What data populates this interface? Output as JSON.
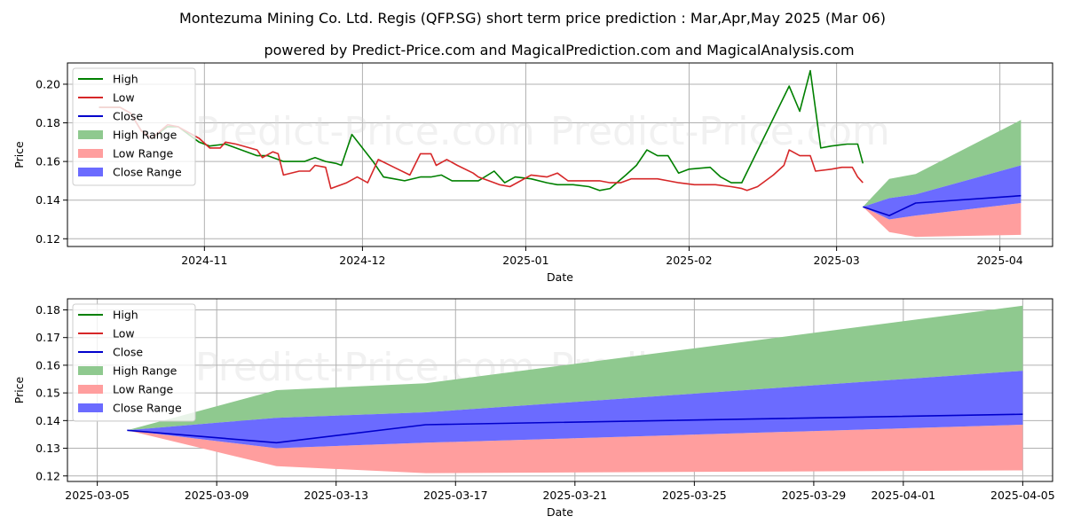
{
  "title": "Montezuma Mining Co. Ltd. Regis (QFP.SG) short term price prediction : Mar,Apr,May 2025 (Mar 06)",
  "subtitle": "powered by Predict-Price.com and MagicalPrediction.com and MagicalAnalysis.com",
  "watermark": "Predict-Price.com",
  "colors": {
    "high": "#008000",
    "low": "#d62728",
    "close": "#0000cc",
    "high_range": "#8fc98f",
    "low_range": "#ff9e9e",
    "close_range": "#6b6bff"
  },
  "legend": [
    "High",
    "Low",
    "Close",
    "High Range",
    "Low Range",
    "Close Range"
  ],
  "chart_data": [
    {
      "type": "line",
      "xlabel": "Date",
      "ylabel": "Price",
      "x_ticks": [
        "2024-11",
        "2024-12",
        "2025-01",
        "2025-02",
        "2025-03",
        "2025-04"
      ],
      "y_ticks": [
        "0.12",
        "0.14",
        "0.16",
        "0.18",
        "0.20"
      ],
      "xlim": [
        "2024-10-06",
        "2025-04-11"
      ],
      "ylim": [
        0.116,
        0.211
      ],
      "grid": true,
      "legend_position": "top-left",
      "series": [
        {
          "name": "High",
          "points": [
            [
              "2024-10-12",
              0.188
            ],
            [
              "2024-10-16",
              0.188
            ],
            [
              "2024-10-18",
              0.185
            ],
            [
              "2024-10-20",
              0.176
            ],
            [
              "2024-10-22",
              0.172
            ],
            [
              "2024-10-25",
              0.178
            ],
            [
              "2024-10-27",
              0.178
            ],
            [
              "2024-10-31",
              0.17
            ],
            [
              "2024-11-02",
              0.168
            ],
            [
              "2024-11-05",
              0.169
            ],
            [
              "2024-11-07",
              0.167
            ],
            [
              "2024-11-09",
              0.165
            ],
            [
              "2024-11-11",
              0.163
            ],
            [
              "2024-11-13",
              0.163
            ],
            [
              "2024-11-15",
              0.161
            ],
            [
              "2024-11-16",
              0.16
            ],
            [
              "2024-11-19",
              0.16
            ],
            [
              "2024-11-20",
              0.16
            ],
            [
              "2024-11-21",
              0.161
            ],
            [
              "2024-11-22",
              0.162
            ],
            [
              "2024-11-24",
              0.16
            ],
            [
              "2024-11-26",
              0.159
            ],
            [
              "2024-11-27",
              0.158
            ],
            [
              "2024-11-29",
              0.174
            ],
            [
              "2024-12-03",
              0.16
            ],
            [
              "2024-12-05",
              0.152
            ],
            [
              "2024-12-07",
              0.151
            ],
            [
              "2024-12-09",
              0.15
            ],
            [
              "2024-12-12",
              0.152
            ],
            [
              "2024-12-14",
              0.152
            ],
            [
              "2024-12-16",
              0.153
            ],
            [
              "2024-12-18",
              0.15
            ],
            [
              "2024-12-21",
              0.15
            ],
            [
              "2024-12-23",
              0.15
            ],
            [
              "2024-12-26",
              0.155
            ],
            [
              "2024-12-28",
              0.149
            ],
            [
              "2024-12-30",
              0.152
            ],
            [
              "2025-01-02",
              0.151
            ],
            [
              "2025-01-05",
              0.149
            ],
            [
              "2025-01-07",
              0.148
            ],
            [
              "2025-01-10",
              0.148
            ],
            [
              "2025-01-13",
              0.147
            ],
            [
              "2025-01-15",
              0.145
            ],
            [
              "2025-01-17",
              0.146
            ],
            [
              "2025-01-20",
              0.153
            ],
            [
              "2025-01-22",
              0.158
            ],
            [
              "2025-01-24",
              0.166
            ],
            [
              "2025-01-26",
              0.163
            ],
            [
              "2025-01-28",
              0.163
            ],
            [
              "2025-01-30",
              0.154
            ],
            [
              "2025-02-01",
              0.156
            ],
            [
              "2025-02-05",
              0.157
            ],
            [
              "2025-02-07",
              0.152
            ],
            [
              "2025-02-09",
              0.149
            ],
            [
              "2025-02-11",
              0.149
            ],
            [
              "2025-02-20",
              0.199
            ],
            [
              "2025-02-22",
              0.186
            ],
            [
              "2025-02-24",
              0.207
            ],
            [
              "2025-02-26",
              0.167
            ],
            [
              "2025-02-28",
              0.168
            ],
            [
              "2025-03-03",
              0.169
            ],
            [
              "2025-03-05",
              0.169
            ],
            [
              "2025-03-06",
              0.159
            ]
          ]
        },
        {
          "name": "Low",
          "points": [
            [
              "2024-10-12",
              0.188
            ],
            [
              "2024-10-16",
              0.188
            ],
            [
              "2024-10-18",
              0.185
            ],
            [
              "2024-10-20",
              0.176
            ],
            [
              "2024-10-22",
              0.172
            ],
            [
              "2024-10-25",
              0.179
            ],
            [
              "2024-10-27",
              0.178
            ],
            [
              "2024-10-31",
              0.172
            ],
            [
              "2024-11-02",
              0.167
            ],
            [
              "2024-11-04",
              0.167
            ],
            [
              "2024-11-05",
              0.17
            ],
            [
              "2024-11-07",
              0.169
            ],
            [
              "2024-11-11",
              0.166
            ],
            [
              "2024-11-12",
              0.162
            ],
            [
              "2024-11-14",
              0.165
            ],
            [
              "2024-11-15",
              0.164
            ],
            [
              "2024-11-16",
              0.153
            ],
            [
              "2024-11-19",
              0.155
            ],
            [
              "2024-11-21",
              0.155
            ],
            [
              "2024-11-22",
              0.158
            ],
            [
              "2024-11-24",
              0.157
            ],
            [
              "2024-11-25",
              0.146
            ],
            [
              "2024-11-28",
              0.149
            ],
            [
              "2024-11-30",
              0.152
            ],
            [
              "2024-12-02",
              0.149
            ],
            [
              "2024-12-04",
              0.161
            ],
            [
              "2024-12-07",
              0.157
            ],
            [
              "2024-12-10",
              0.153
            ],
            [
              "2024-12-12",
              0.164
            ],
            [
              "2024-12-14",
              0.164
            ],
            [
              "2024-12-15",
              0.158
            ],
            [
              "2024-12-17",
              0.161
            ],
            [
              "2024-12-19",
              0.158
            ],
            [
              "2024-12-22",
              0.154
            ],
            [
              "2024-12-23",
              0.152
            ],
            [
              "2024-12-25",
              0.15
            ],
            [
              "2024-12-27",
              0.148
            ],
            [
              "2024-12-29",
              0.147
            ],
            [
              "2025-01-02",
              0.153
            ],
            [
              "2025-01-05",
              0.152
            ],
            [
              "2025-01-07",
              0.154
            ],
            [
              "2025-01-09",
              0.15
            ],
            [
              "2025-01-12",
              0.15
            ],
            [
              "2025-01-15",
              0.15
            ],
            [
              "2025-01-17",
              0.149
            ],
            [
              "2025-01-19",
              0.149
            ],
            [
              "2025-01-21",
              0.151
            ],
            [
              "2025-01-23",
              0.151
            ],
            [
              "2025-01-26",
              0.151
            ],
            [
              "2025-01-28",
              0.15
            ],
            [
              "2025-01-30",
              0.149
            ],
            [
              "2025-02-02",
              0.148
            ],
            [
              "2025-02-06",
              0.148
            ],
            [
              "2025-02-09",
              0.147
            ],
            [
              "2025-02-11",
              0.146
            ],
            [
              "2025-02-12",
              0.145
            ],
            [
              "2025-02-14",
              0.147
            ],
            [
              "2025-02-17",
              0.153
            ],
            [
              "2025-02-19",
              0.158
            ],
            [
              "2025-02-20",
              0.166
            ],
            [
              "2025-02-22",
              0.163
            ],
            [
              "2025-02-24",
              0.163
            ],
            [
              "2025-02-25",
              0.155
            ],
            [
              "2025-02-28",
              0.156
            ],
            [
              "2025-03-02",
              0.157
            ],
            [
              "2025-03-04",
              0.157
            ],
            [
              "2025-03-05",
              0.152
            ],
            [
              "2025-03-06",
              0.149
            ]
          ]
        },
        {
          "name": "Close",
          "points": [
            [
              "2025-03-06",
              0.1365
            ],
            [
              "2025-03-11",
              0.132
            ],
            [
              "2025-03-16",
              0.1385
            ],
            [
              "2025-04-05",
              0.1423
            ]
          ]
        }
      ],
      "ranges": [
        {
          "name": "High Range",
          "x": [
            "2025-03-06",
            "2025-03-11",
            "2025-03-16",
            "2025-04-05"
          ],
          "upper": [
            0.1365,
            0.151,
            0.1535,
            0.1815
          ],
          "lower": [
            0.1365,
            0.141,
            0.143,
            0.158
          ]
        },
        {
          "name": "Low Range",
          "x": [
            "2025-03-06",
            "2025-03-11",
            "2025-03-16",
            "2025-04-05"
          ],
          "upper": [
            0.1365,
            0.13,
            0.132,
            0.1385
          ],
          "lower": [
            0.1365,
            0.1235,
            0.121,
            0.122
          ]
        },
        {
          "name": "Close Range",
          "x": [
            "2025-03-06",
            "2025-03-11",
            "2025-03-16",
            "2025-04-05"
          ],
          "upper": [
            0.1365,
            0.141,
            0.143,
            0.158
          ],
          "lower": [
            0.1365,
            0.13,
            0.132,
            0.1385
          ]
        }
      ]
    },
    {
      "type": "line",
      "xlabel": "Date",
      "ylabel": "Price",
      "x_ticks": [
        "2025-03-05",
        "2025-03-09",
        "2025-03-13",
        "2025-03-17",
        "2025-03-21",
        "2025-03-25",
        "2025-03-29",
        "2025-04-01",
        "2025-04-05"
      ],
      "y_ticks": [
        "0.12",
        "0.13",
        "0.14",
        "0.15",
        "0.16",
        "0.17",
        "0.18"
      ],
      "xlim": [
        "2025-03-04",
        "2025-04-06"
      ],
      "ylim": [
        0.118,
        0.184
      ],
      "grid": true,
      "legend_position": "top-left",
      "series": [
        {
          "name": "Close",
          "points": [
            [
              "2025-03-06",
              0.1365
            ],
            [
              "2025-03-11",
              0.132
            ],
            [
              "2025-03-16",
              0.1385
            ],
            [
              "2025-04-05",
              0.1423
            ]
          ]
        }
      ],
      "ranges": [
        {
          "name": "High Range",
          "x": [
            "2025-03-06",
            "2025-03-11",
            "2025-03-16",
            "2025-04-05"
          ],
          "upper": [
            0.1365,
            0.151,
            0.1535,
            0.1815
          ],
          "lower": [
            0.1365,
            0.141,
            0.143,
            0.158
          ]
        },
        {
          "name": "Low Range",
          "x": [
            "2025-03-06",
            "2025-03-11",
            "2025-03-16",
            "2025-04-05"
          ],
          "upper": [
            0.1365,
            0.13,
            0.132,
            0.1385
          ],
          "lower": [
            0.1365,
            0.1235,
            0.121,
            0.122
          ]
        },
        {
          "name": "Close Range",
          "x": [
            "2025-03-06",
            "2025-03-11",
            "2025-03-16",
            "2025-04-05"
          ],
          "upper": [
            0.1365,
            0.141,
            0.143,
            0.158
          ],
          "lower": [
            0.1365,
            0.13,
            0.132,
            0.1385
          ]
        }
      ]
    }
  ]
}
